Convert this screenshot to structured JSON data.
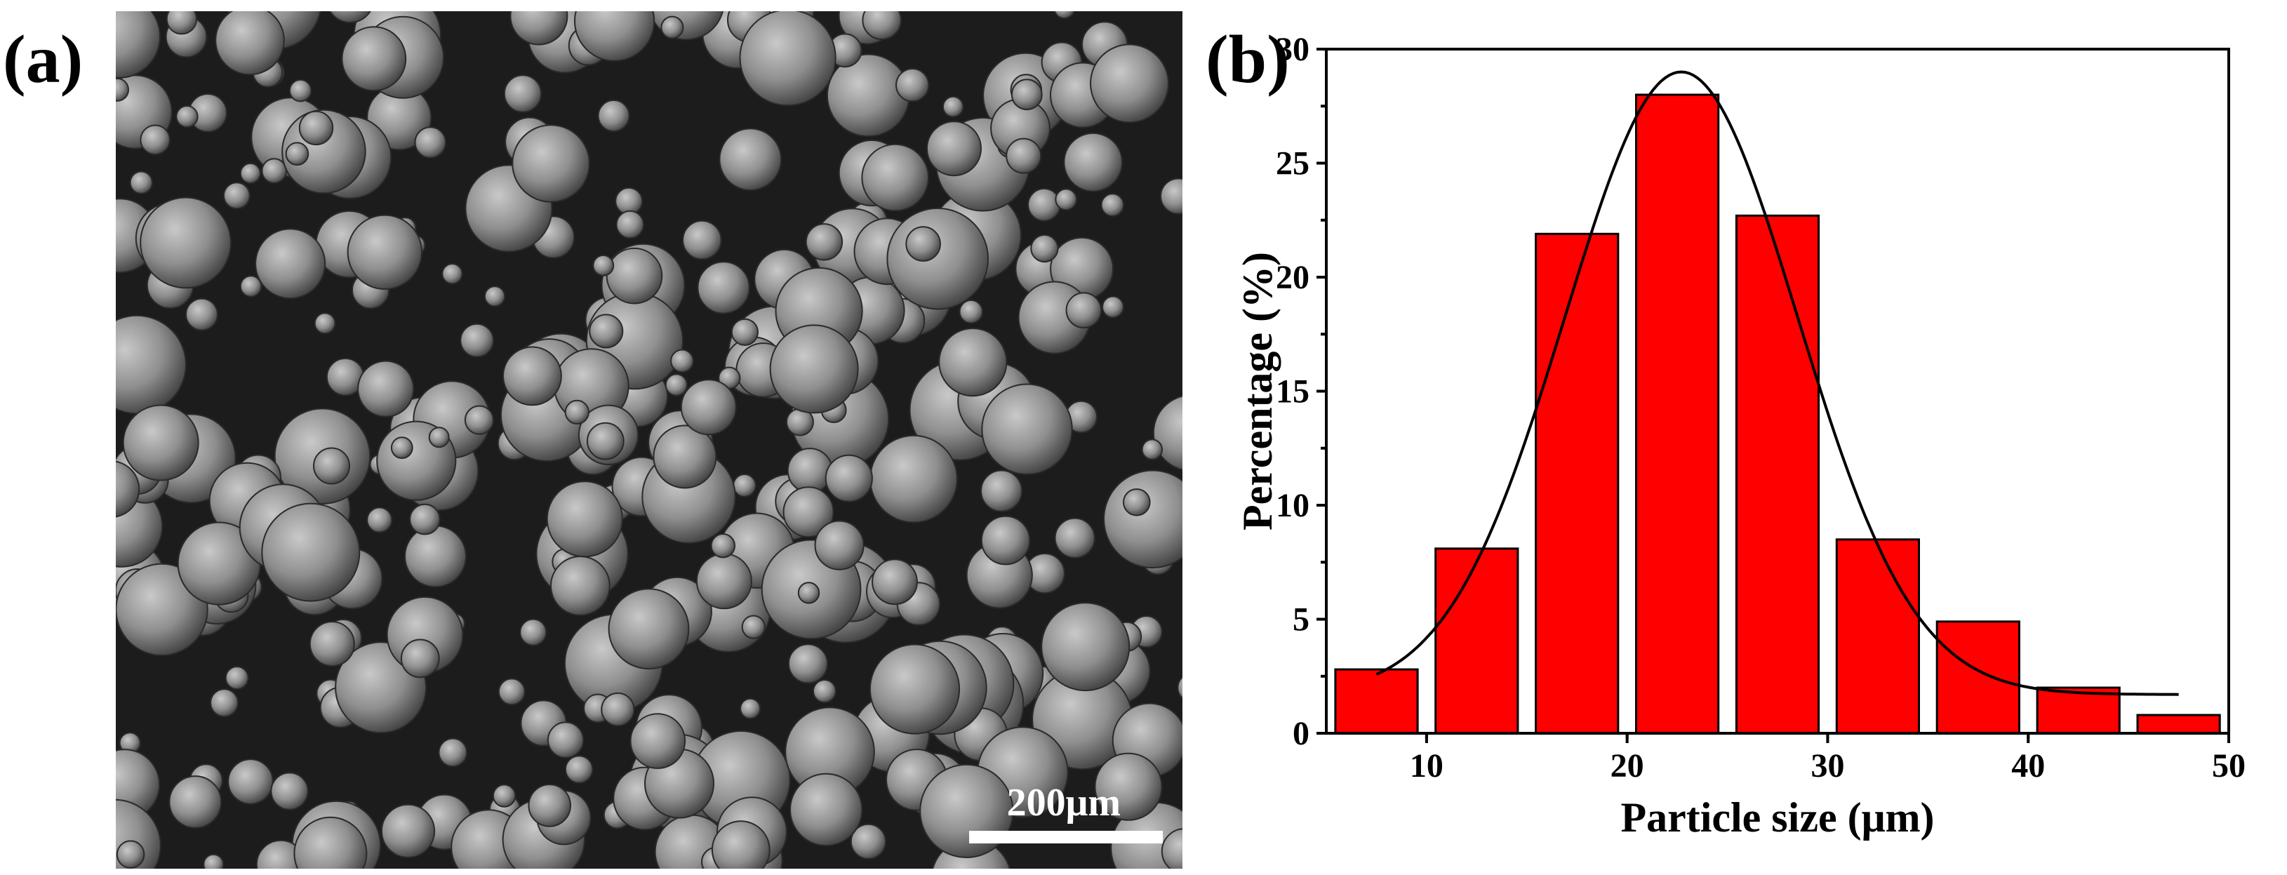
{
  "panels": {
    "a": {
      "label": "(a)",
      "scale_bar_text": "200μm"
    },
    "b": {
      "label": "(b)"
    }
  },
  "chart_data": {
    "type": "bar",
    "xlabel": "Particle size (μm)",
    "ylabel": "Percentage (%)",
    "xlim": [
      5,
      50
    ],
    "ylim": [
      0,
      30
    ],
    "xticks": [
      10,
      20,
      30,
      40,
      50
    ],
    "yticks": [
      0,
      5,
      10,
      15,
      20,
      25,
      30
    ],
    "bin_width": 5,
    "bars": [
      {
        "x": 7.5,
        "value": 2.8
      },
      {
        "x": 12.5,
        "value": 8.1
      },
      {
        "x": 17.5,
        "value": 21.9
      },
      {
        "x": 22.5,
        "value": 28.0
      },
      {
        "x": 27.5,
        "value": 22.7
      },
      {
        "x": 32.5,
        "value": 8.5
      },
      {
        "x": 37.5,
        "value": 4.9
      },
      {
        "x": 42.5,
        "value": 2.0
      },
      {
        "x": 47.5,
        "value": 0.8
      }
    ],
    "fit_curve": {
      "type": "gaussian",
      "x_range": [
        7.5,
        47.5
      ],
      "baseline": 1.7,
      "peak_x": 22.7,
      "peak_y": 29.0,
      "sigma": 5.8
    },
    "bar_color": "#ff0000",
    "curve_color": "#000000",
    "grid": false,
    "legend": "none"
  }
}
